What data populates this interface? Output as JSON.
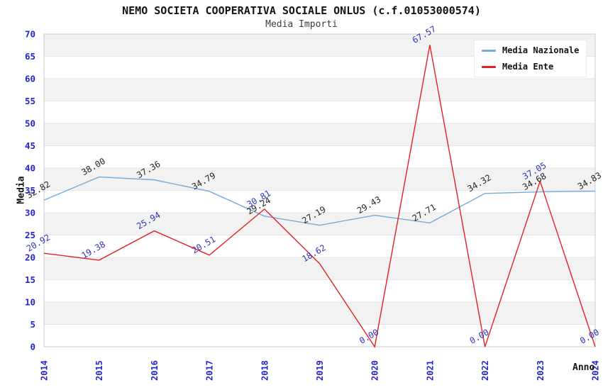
{
  "title": "NEMO SOCIETA COOPERATIVA SOCIALE ONLUS (c.f.01053000574)",
  "subtitle": "Media Importi",
  "chart_data": {
    "type": "line",
    "x": [
      2014,
      2015,
      2016,
      2017,
      2018,
      2019,
      2020,
      2021,
      2022,
      2023,
      2024
    ],
    "series": [
      {
        "name": "Media Nazionale",
        "color": "#74aadc",
        "label_color": "#262626",
        "values": [
          32.82,
          38.0,
          37.36,
          34.79,
          29.24,
          27.19,
          29.43,
          27.71,
          34.32,
          34.68,
          34.83
        ]
      },
      {
        "name": "Media Ente",
        "color": "#e02222",
        "label_color": "#3333bb",
        "values": [
          20.92,
          19.38,
          25.94,
          20.51,
          30.81,
          18.62,
          0.0,
          67.57,
          0.0,
          37.05,
          0.0
        ]
      }
    ],
    "xlabel": "Anno",
    "ylabel": "Media",
    "ylim": [
      0,
      70
    ],
    "ytick_step": 5,
    "legend_position": "top-right",
    "grid": "horizontal-bands",
    "style": {
      "tick_color": "#2424cc",
      "grid_color": "#e6e6e6",
      "band_gray": "#f2f2f2",
      "band_white": "#ffffff",
      "border_color": "#c9c9c9"
    }
  }
}
